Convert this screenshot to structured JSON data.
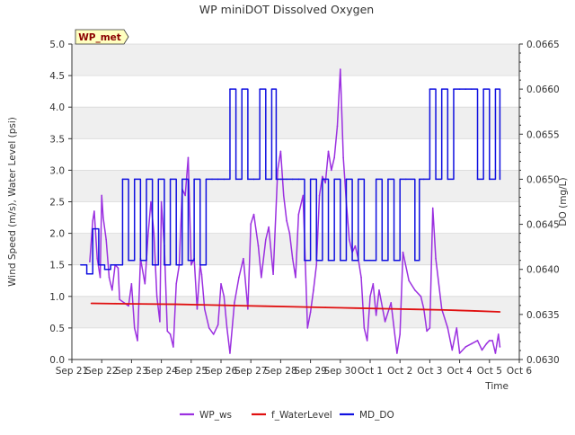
{
  "chart_data": {
    "type": "line",
    "title": "WP miniDOT Dissolved Oxygen",
    "station_label": "WP_met",
    "xlabel": "Time",
    "ylabel_left": "Wind Speed (m/s), Water Level (psi)",
    "ylabel_right": "DO (mg/L)",
    "x_ticks": [
      "Sep 21",
      "Sep 22",
      "Sep 23",
      "Sep 24",
      "Sep 25",
      "Sep 26",
      "Sep 27",
      "Sep 28",
      "Sep 29",
      "Sep 30",
      "Oct 1",
      "Oct 2",
      "Oct 3",
      "Oct 4",
      "Oct 5",
      "Oct 6"
    ],
    "xlim_days": [
      0,
      15
    ],
    "ylim_left": [
      0.0,
      5.0
    ],
    "y_ticks_left": [
      "0.0",
      "0.5",
      "1.0",
      "1.5",
      "2.0",
      "2.5",
      "3.0",
      "3.5",
      "4.0",
      "4.5",
      "5.0"
    ],
    "ylim_right": [
      0.063,
      0.0665
    ],
    "y_ticks_right": [
      "0.0630",
      "0.0635",
      "0.0640",
      "0.0645",
      "0.0650",
      "0.0655",
      "0.0660",
      "0.0665"
    ],
    "grid": true,
    "legend_position": "bottom-center",
    "series": [
      {
        "name": "WP_ws",
        "axis": "left",
        "color": "#9b30e0",
        "x": [
          0.6,
          0.7,
          0.75,
          0.85,
          0.95,
          1.0,
          1.05,
          1.15,
          1.25,
          1.35,
          1.45,
          1.55,
          1.6,
          1.75,
          1.9,
          2.0,
          2.1,
          2.2,
          2.3,
          2.45,
          2.55,
          2.65,
          2.75,
          2.85,
          2.95,
          3.0,
          3.1,
          3.2,
          3.3,
          3.4,
          3.5,
          3.6,
          3.7,
          3.8,
          3.9,
          4.0,
          4.1,
          4.2,
          4.3,
          4.35,
          4.45,
          4.6,
          4.75,
          4.9,
          5.0,
          5.1,
          5.2,
          5.3,
          5.45,
          5.6,
          5.75,
          5.9,
          6.0,
          6.1,
          6.25,
          6.35,
          6.5,
          6.6,
          6.75,
          6.9,
          7.0,
          7.1,
          7.2,
          7.3,
          7.4,
          7.5,
          7.6,
          7.75,
          7.9,
          8.0,
          8.1,
          8.2,
          8.3,
          8.4,
          8.5,
          8.6,
          8.7,
          8.8,
          8.9,
          9.0,
          9.1,
          9.2,
          9.3,
          9.4,
          9.5,
          9.6,
          9.7,
          9.8,
          9.9,
          10.0,
          10.1,
          10.2,
          10.3,
          10.5,
          10.7,
          10.9,
          11.0,
          11.1,
          11.3,
          11.5,
          11.7,
          11.8,
          11.9,
          12.0,
          12.1,
          12.2,
          12.4,
          12.6,
          12.75,
          12.9,
          13.0,
          13.2,
          13.4,
          13.6,
          13.75,
          13.9,
          14.0,
          14.1,
          14.2,
          14.3,
          14.35
        ],
        "values": [
          1.55,
          2.2,
          2.35,
          1.6,
          1.3,
          2.6,
          2.25,
          1.9,
          1.3,
          1.1,
          1.5,
          1.45,
          0.95,
          0.9,
          0.85,
          1.2,
          0.5,
          0.3,
          1.6,
          1.2,
          1.95,
          2.5,
          2.0,
          1.0,
          0.6,
          2.5,
          1.8,
          0.45,
          0.4,
          0.2,
          1.2,
          1.5,
          2.7,
          2.6,
          3.2,
          1.5,
          1.6,
          0.8,
          1.5,
          1.35,
          0.8,
          0.5,
          0.4,
          0.55,
          1.2,
          1.0,
          0.5,
          0.1,
          0.9,
          1.3,
          1.6,
          0.8,
          2.15,
          2.3,
          1.8,
          1.3,
          1.9,
          2.1,
          1.35,
          3.0,
          3.3,
          2.6,
          2.2,
          2.0,
          1.6,
          1.3,
          2.3,
          2.6,
          0.5,
          0.75,
          1.1,
          1.5,
          2.6,
          2.9,
          2.8,
          3.3,
          3.0,
          3.2,
          3.7,
          4.6,
          3.2,
          2.5,
          1.9,
          1.7,
          1.8,
          1.6,
          1.3,
          0.5,
          0.3,
          1.0,
          1.2,
          0.7,
          1.1,
          0.6,
          0.9,
          0.1,
          0.4,
          1.7,
          1.25,
          1.1,
          1.0,
          0.8,
          0.45,
          0.5,
          2.4,
          1.6,
          0.8,
          0.5,
          0.15,
          0.5,
          0.1,
          0.2,
          0.25,
          0.3,
          0.15,
          0.25,
          0.3,
          0.3,
          0.1,
          0.4,
          0.2
        ]
      },
      {
        "name": "f_WaterLevel",
        "axis": "left",
        "color": "#e01010",
        "x": [
          0.65,
          1.5,
          2.5,
          3.5,
          4.5,
          5.5,
          6.5,
          7.5,
          8.5,
          9.5,
          10.5,
          11.5,
          12.5,
          13.5,
          14.35
        ],
        "values": [
          0.89,
          0.885,
          0.88,
          0.875,
          0.865,
          0.855,
          0.845,
          0.835,
          0.825,
          0.815,
          0.805,
          0.795,
          0.785,
          0.77,
          0.755
        ]
      },
      {
        "name": "MD_DO",
        "axis": "right",
        "color": "#1010e0",
        "x": [
          0.3,
          0.5,
          0.7,
          0.9,
          1.1,
          1.3,
          1.55,
          1.7,
          1.9,
          2.1,
          2.3,
          2.5,
          2.7,
          2.9,
          3.1,
          3.3,
          3.5,
          3.7,
          3.9,
          4.1,
          4.3,
          4.5,
          4.7,
          4.9,
          5.1,
          5.3,
          5.5,
          5.7,
          5.9,
          6.1,
          6.3,
          6.5,
          6.7,
          6.85,
          7.0,
          7.2,
          7.4,
          7.6,
          7.8,
          8.0,
          8.2,
          8.4,
          8.6,
          8.8,
          9.0,
          9.2,
          9.4,
          9.6,
          9.8,
          10.0,
          10.2,
          10.4,
          10.6,
          10.8,
          11.0,
          11.2,
          11.5,
          11.65,
          11.8,
          12.0,
          12.2,
          12.4,
          12.6,
          12.8,
          13.0,
          13.2,
          13.4,
          13.6,
          13.8,
          14.0,
          14.2,
          14.35
        ],
        "values": [
          0.06405,
          0.06395,
          0.06445,
          0.06405,
          0.064,
          0.06405,
          0.06405,
          0.065,
          0.0641,
          0.065,
          0.0641,
          0.065,
          0.06405,
          0.065,
          0.06405,
          0.065,
          0.06405,
          0.065,
          0.0641,
          0.065,
          0.06405,
          0.065,
          0.065,
          0.065,
          0.065,
          0.066,
          0.065,
          0.066,
          0.065,
          0.065,
          0.066,
          0.065,
          0.066,
          0.065,
          0.065,
          0.065,
          0.065,
          0.065,
          0.0641,
          0.065,
          0.0641,
          0.065,
          0.0641,
          0.065,
          0.0641,
          0.065,
          0.0641,
          0.065,
          0.0641,
          0.0641,
          0.065,
          0.0641,
          0.065,
          0.0641,
          0.065,
          0.065,
          0.0641,
          0.065,
          0.065,
          0.066,
          0.065,
          0.066,
          0.065,
          0.066,
          0.066,
          0.066,
          0.066,
          0.065,
          0.066,
          0.065,
          0.066,
          0.065
        ]
      }
    ]
  }
}
